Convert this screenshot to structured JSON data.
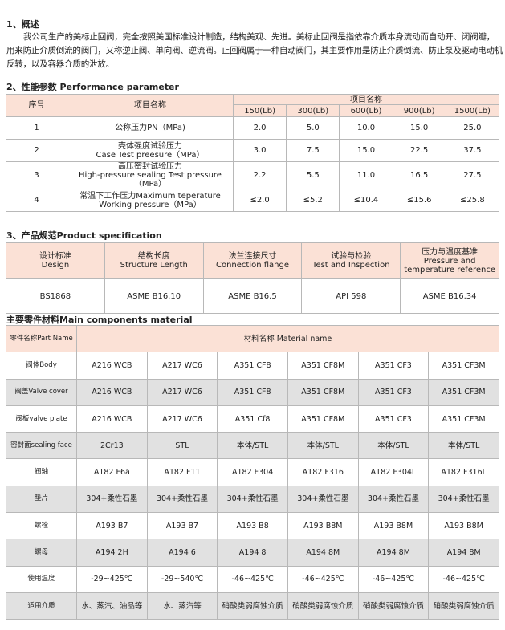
{
  "overview": {
    "heading": "1、概述",
    "text": "我公司生产的美标止回阀，完全按照美国标准设计制造，结构美观、先进。美标止回阀是指依靠介质本身流动而自动开、闭阀瓣，用来防止介质倒流的阀门，又称逆止阀、单向阀、逆流阀。止回阀属于一种自动阀门，其主要作用是防止介质倒流、防止泵及驱动电动机反转，以及容器介质的泄放。"
  },
  "performance": {
    "heading": "2、性能参数 Performance parameter",
    "col_no": "序号",
    "col_item": "项目名称",
    "col_group": "项目名称",
    "classes": [
      "150(Lb)",
      "300(Lb)",
      "600(Lb)",
      "900(Lb)",
      "1500(Lb)"
    ],
    "rows": [
      {
        "no": "1",
        "item": "公称压力PN（MPa)",
        "values": [
          "2.0",
          "5.0",
          "10.0",
          "15.0",
          "25.0"
        ]
      },
      {
        "no": "2",
        "item": "壳体强度试验压力\nCase Test preesure（MPa）",
        "values": [
          "3.0",
          "7.5",
          "15.0",
          "22.5",
          "37.5"
        ]
      },
      {
        "no": "3",
        "item": "高压密封试验压力\nHigh-pressure sealing Test pressure\n（MPa）",
        "values": [
          "2.2",
          "5.5",
          "11.0",
          "16.5",
          "27.5"
        ]
      },
      {
        "no": "4",
        "item": "常温下工作压力Maximum teperature\nWorking pressure（MPa）",
        "values": [
          "≤2.0",
          "≤5.2",
          "≤10.4",
          "≤15.6",
          "≤25.8"
        ]
      }
    ]
  },
  "spec": {
    "heading": "3、产品规范Product specification",
    "headers": [
      "设计标准\nDesign",
      "结构长度\nStructure Length",
      "法兰连接尺寸\nConnection flange",
      "试验与检验\nTest and Inspection",
      "压力与温度基准\nPressure and\ntemperature reference"
    ],
    "values": [
      "BS1868",
      "ASME B16.10",
      "ASME B16.5",
      "API 598",
      "ASME B16.34"
    ]
  },
  "materials": {
    "heading": "主要零件材料Main components material",
    "col_part": "零件名称Part Name",
    "col_material": "材料名称 Material name",
    "rows": [
      {
        "part": "阀体Body",
        "values": [
          "A216 WCB",
          "A217 WC6",
          "A351 CF8",
          "A351 CF8M",
          "A351 CF3",
          "A351 CF3M"
        ]
      },
      {
        "part": "阀盖Valve cover",
        "values": [
          "A216 WCB",
          "A217 WC6",
          "A351 CF8",
          "A351 CF8M",
          "A351 CF3",
          "A351 CF3M"
        ]
      },
      {
        "part": "阀板valve plate",
        "values": [
          "A216 WCB",
          "A217 WC6",
          "A351 Cf8",
          "A351 CF8M",
          "A351 CF3",
          "A351 CF3M"
        ]
      },
      {
        "part": "密封面sealing face",
        "values": [
          "2Cr13",
          "STL",
          "本体/STL",
          "本体/STL",
          "本体/STL",
          "本体/STL"
        ]
      },
      {
        "part": "阀轴",
        "values": [
          "A182 F6a",
          "A182 F11",
          "A182 F304",
          "A182 F316",
          "A182 F304L",
          "A182 F316L"
        ]
      },
      {
        "part": "垫片",
        "values": [
          "304+柔性石墨",
          "304+柔性石墨",
          "304+柔性石墨",
          "304+柔性石墨",
          "304+柔性石墨",
          "304+柔性石墨"
        ]
      },
      {
        "part": "螺栓",
        "values": [
          "A193 B7",
          "A193 B7",
          "A193 B8",
          "A193 B8M",
          "A193 B8M",
          "A193 B8M"
        ]
      },
      {
        "part": "螺母",
        "values": [
          "A194 2H",
          "A194 6",
          "A194 8",
          "A194 8M",
          "A194 8M",
          "A194 8M"
        ]
      },
      {
        "part": "使用温度",
        "values": [
          "-29~425℃",
          "-29~540℃",
          "-46~425℃",
          "-46~425℃",
          "-46~425℃",
          "-46~425℃"
        ]
      },
      {
        "part": "适用介质",
        "values": [
          "水、蒸汽、油品等",
          "水、蒸汽等",
          "硝酸类弱腐蚀介质",
          "硝酸类弱腐蚀介质",
          "硝酸类弱腐蚀介质",
          "硝酸类弱腐蚀介质"
        ]
      }
    ]
  },
  "colors": {
    "header_bg": "#fbe1d6",
    "alt_row_bg": "#e1e1e1",
    "border": "#b8b8b8"
  }
}
